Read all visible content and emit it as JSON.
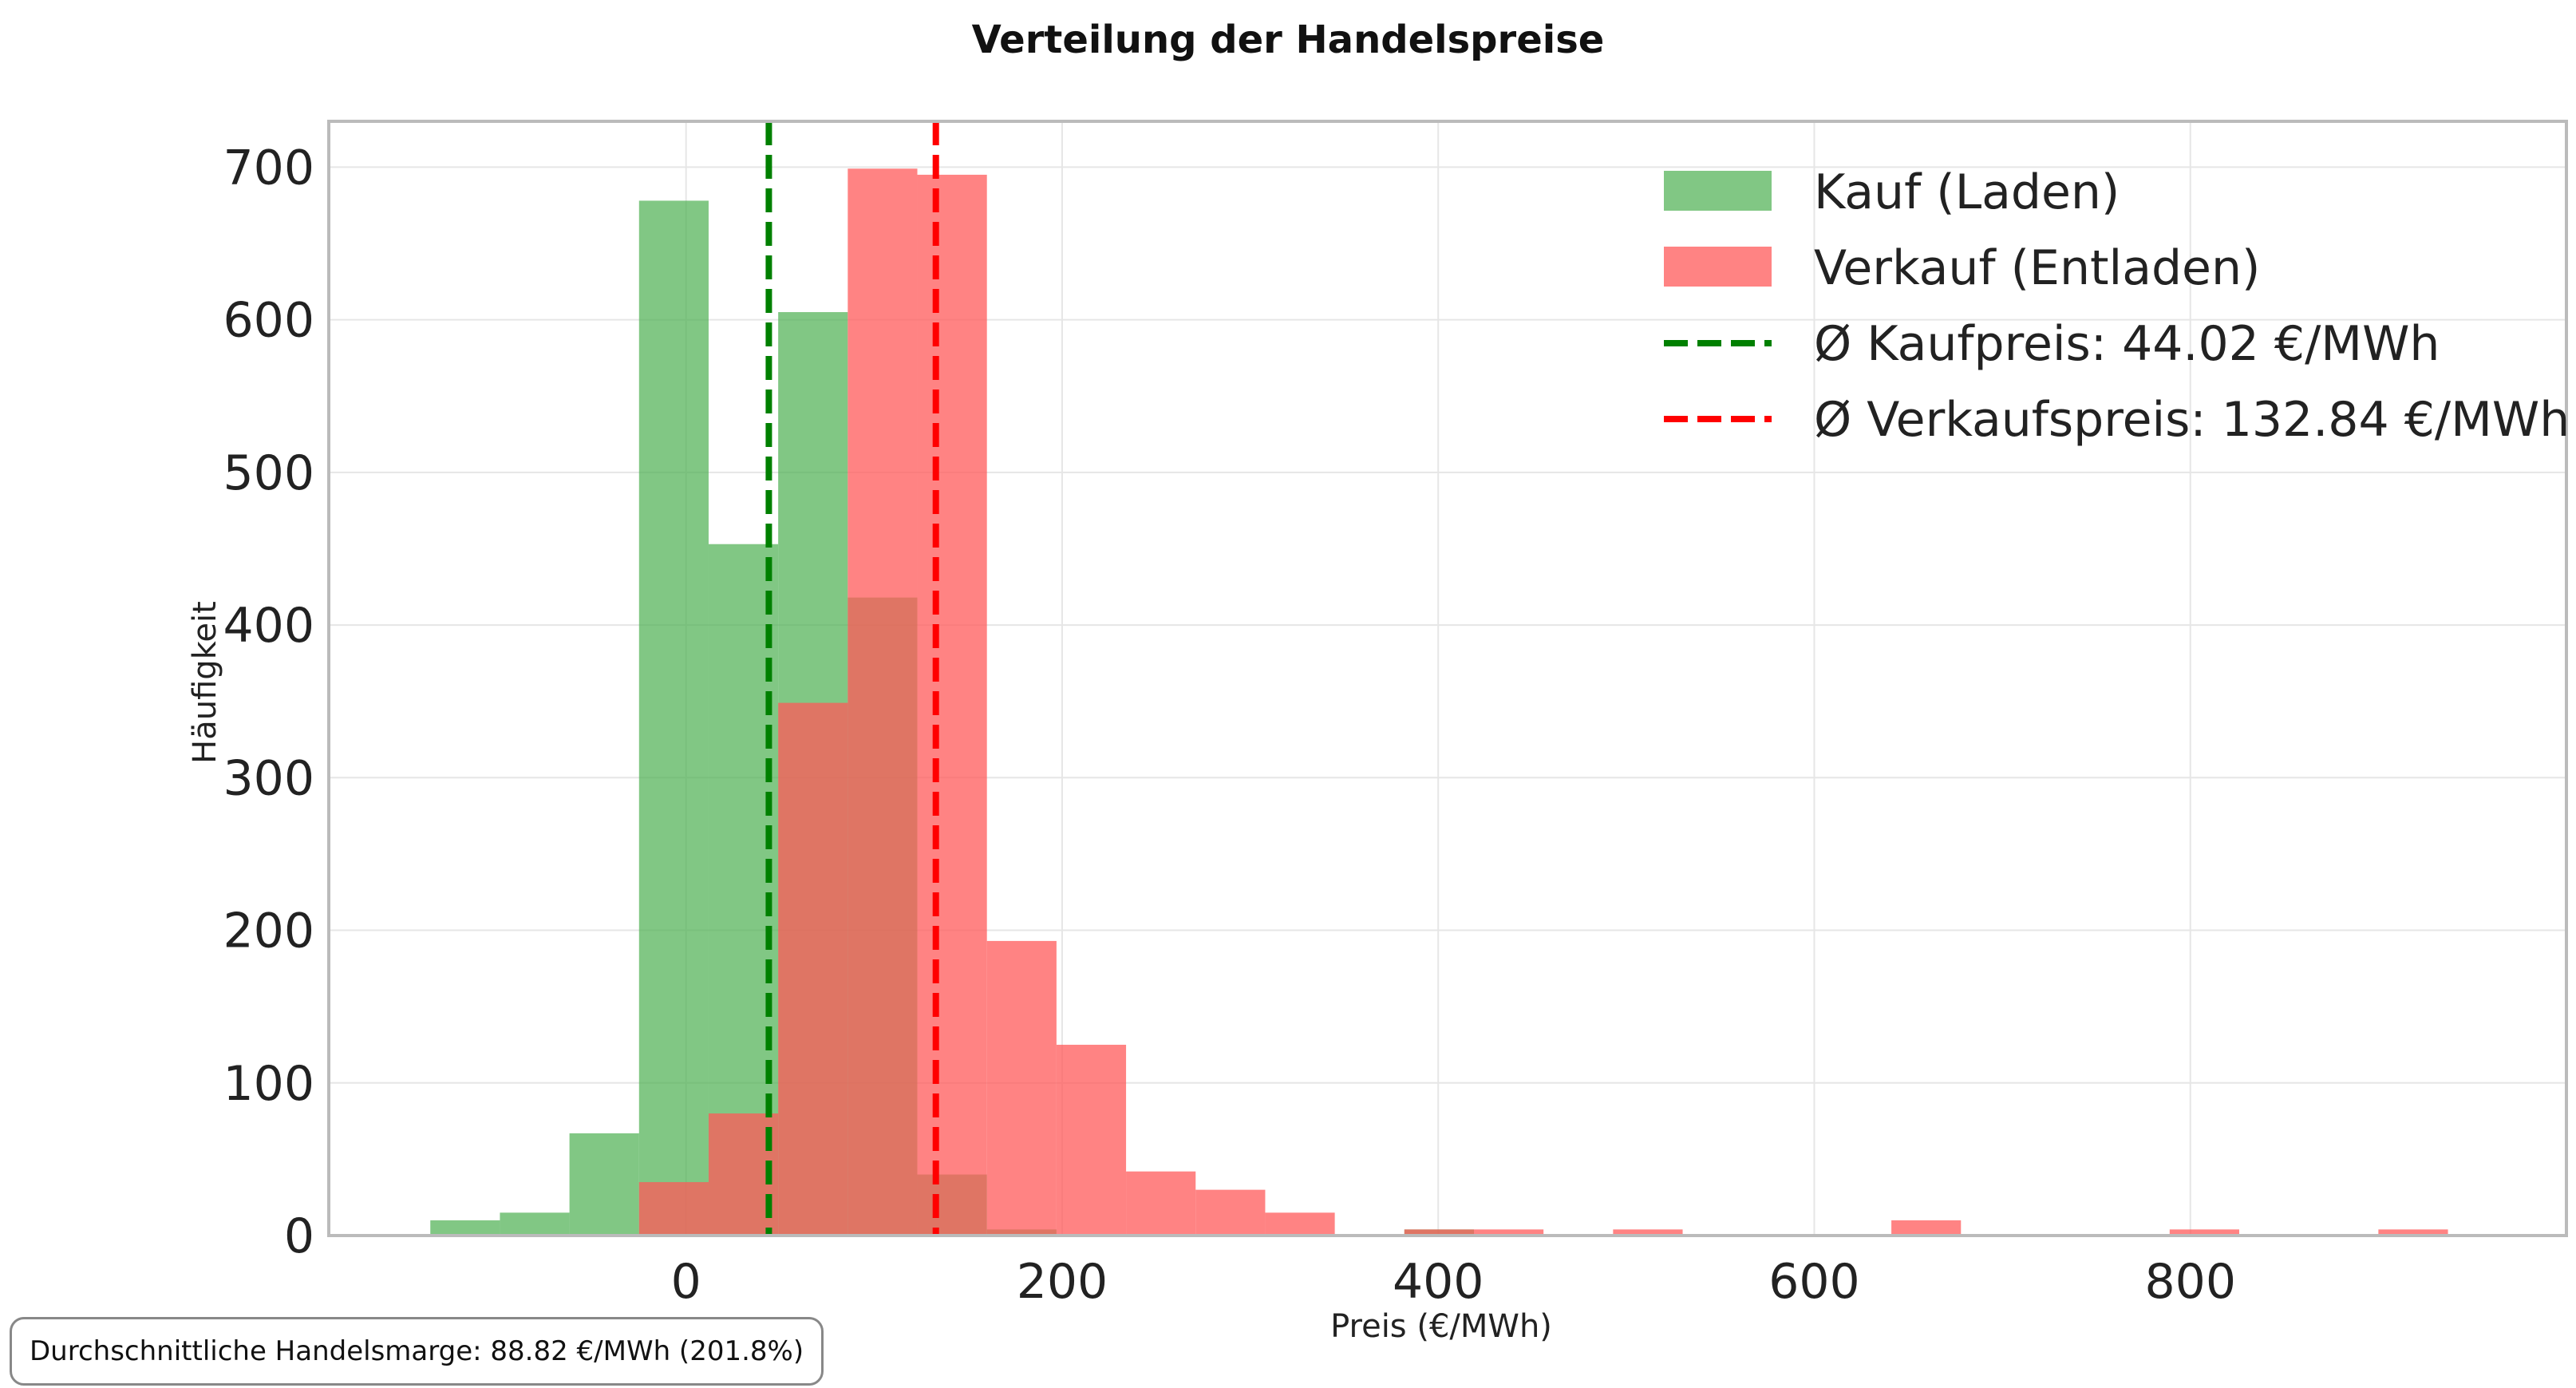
{
  "chart_data": {
    "type": "histogram",
    "title": "Verteilung der Handelspreise",
    "xlabel": "Preis (€/MWh)",
    "ylabel": "Häufigkeit",
    "xlim": [
      -190,
      1000
    ],
    "ylim": [
      0,
      730
    ],
    "x_ticks": [
      0,
      200,
      400,
      600,
      800
    ],
    "y_ticks": [
      0,
      100,
      200,
      300,
      400,
      500,
      600,
      700
    ],
    "grid": true,
    "legend_position": "top-right",
    "series": [
      {
        "name": "Kauf (Laden)",
        "color": "#4caf50",
        "opacity": 0.7,
        "bins": [
          {
            "x0": -136,
            "x1": -99,
            "count": 10
          },
          {
            "x0": -99,
            "x1": -62,
            "count": 15
          },
          {
            "x0": -62,
            "x1": -25,
            "count": 67
          },
          {
            "x0": -25,
            "x1": 12,
            "count": 678
          },
          {
            "x0": 12,
            "x1": 49,
            "count": 453
          },
          {
            "x0": 49,
            "x1": 86,
            "count": 605
          },
          {
            "x0": 86,
            "x1": 123,
            "count": 418
          },
          {
            "x0": 123,
            "x1": 160,
            "count": 40
          },
          {
            "x0": 160,
            "x1": 197,
            "count": 4
          },
          {
            "x0": 382,
            "x1": 419,
            "count": 4
          }
        ]
      },
      {
        "name": "Verkauf (Entladen)",
        "color": "#ff5a5a",
        "opacity": 0.75,
        "bins": [
          {
            "x0": -25,
            "x1": 12,
            "count": 35
          },
          {
            "x0": 12,
            "x1": 49,
            "count": 80
          },
          {
            "x0": 49,
            "x1": 86,
            "count": 349
          },
          {
            "x0": 86,
            "x1": 123,
            "count": 699
          },
          {
            "x0": 123,
            "x1": 160,
            "count": 695
          },
          {
            "x0": 160,
            "x1": 197,
            "count": 193
          },
          {
            "x0": 197,
            "x1": 234,
            "count": 125
          },
          {
            "x0": 234,
            "x1": 271,
            "count": 42
          },
          {
            "x0": 271,
            "x1": 308,
            "count": 30
          },
          {
            "x0": 308,
            "x1": 345,
            "count": 15
          },
          {
            "x0": 382,
            "x1": 419,
            "count": 4
          },
          {
            "x0": 419,
            "x1": 456,
            "count": 4
          },
          {
            "x0": 493,
            "x1": 530,
            "count": 4
          },
          {
            "x0": 641,
            "x1": 678,
            "count": 10
          },
          {
            "x0": 789,
            "x1": 826,
            "count": 4
          },
          {
            "x0": 900,
            "x1": 937,
            "count": 4
          }
        ]
      }
    ],
    "vlines": [
      {
        "name": "Ø Kaufpreis: 44.02 €/MWh",
        "x": 44.02,
        "color": "#008000",
        "style": "dashed"
      },
      {
        "name": "Ø Verkaufspreis: 132.84 €/MWh",
        "x": 132.84,
        "color": "#ff0000",
        "style": "dashed"
      }
    ]
  },
  "annotation": {
    "text": "Durchschnittliche Handelsmarge: 88.82 €/MWh (201.8%)"
  }
}
